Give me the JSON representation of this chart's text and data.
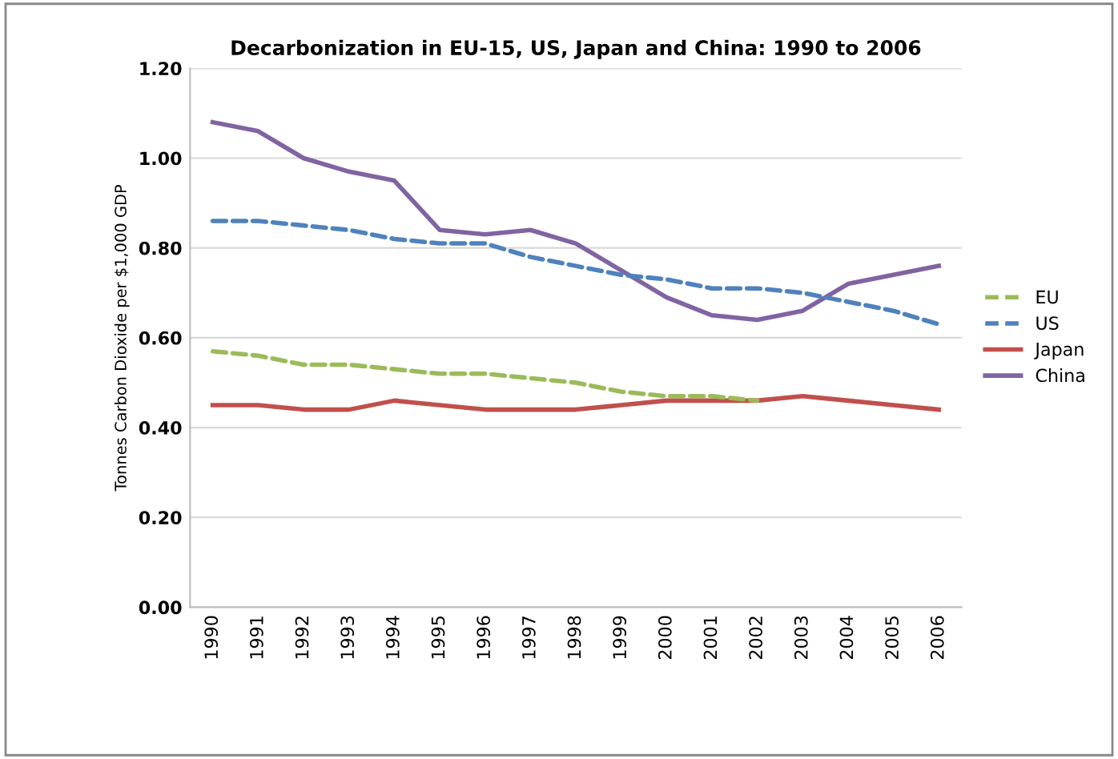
{
  "chart_data": {
    "type": "line",
    "title": "Decarbonization in EU-15, US, Japan and China: 1990 to 2006",
    "ylabel": "Tonnes Carbon Dioxide per $1,000 GDP",
    "categories": [
      "1990",
      "1991",
      "1992",
      "1993",
      "1994",
      "1995",
      "1996",
      "1997",
      "1998",
      "1999",
      "2000",
      "2001",
      "2002",
      "2003",
      "2004",
      "2005",
      "2006"
    ],
    "ylim": [
      0,
      1.2
    ],
    "yticks": [
      {
        "value": 0,
        "label": "0.00"
      },
      {
        "value": 0.2,
        "label": "0.20"
      },
      {
        "value": 0.4,
        "label": "0.40"
      },
      {
        "value": 0.6,
        "label": "0.60"
      },
      {
        "value": 0.8,
        "label": "0.80"
      },
      {
        "value": 1.0,
        "label": "1.00"
      },
      {
        "value": 1.2,
        "label": "1.20"
      }
    ],
    "grid": "y",
    "legend": "right",
    "marker": "none",
    "series": [
      {
        "name": "EU",
        "color": "#9bbb59",
        "line_style": "dashed",
        "values": [
          0.57,
          0.56,
          0.54,
          0.54,
          0.53,
          0.52,
          0.52,
          0.51,
          0.5,
          0.48,
          0.47,
          0.47,
          0.46,
          null,
          null,
          null,
          null
        ]
      },
      {
        "name": "US",
        "color": "#4f81bd",
        "line_style": "dashed",
        "values": [
          0.86,
          0.86,
          0.85,
          0.84,
          0.82,
          0.81,
          0.81,
          0.78,
          0.76,
          0.74,
          0.73,
          0.71,
          0.71,
          0.7,
          0.68,
          0.66,
          0.63
        ]
      },
      {
        "name": "Japan",
        "color": "#c0504d",
        "line_style": "solid",
        "values": [
          0.45,
          0.45,
          0.44,
          0.44,
          0.46,
          0.45,
          0.44,
          0.44,
          0.44,
          0.45,
          0.46,
          0.46,
          0.46,
          0.47,
          0.46,
          0.45,
          0.44
        ]
      },
      {
        "name": "China",
        "color": "#8064a2",
        "line_style": "solid",
        "values": [
          1.08,
          1.06,
          1.0,
          0.97,
          0.95,
          0.84,
          0.83,
          0.84,
          0.81,
          0.75,
          0.69,
          0.65,
          0.64,
          0.66,
          0.72,
          0.74,
          0.76
        ]
      }
    ]
  }
}
